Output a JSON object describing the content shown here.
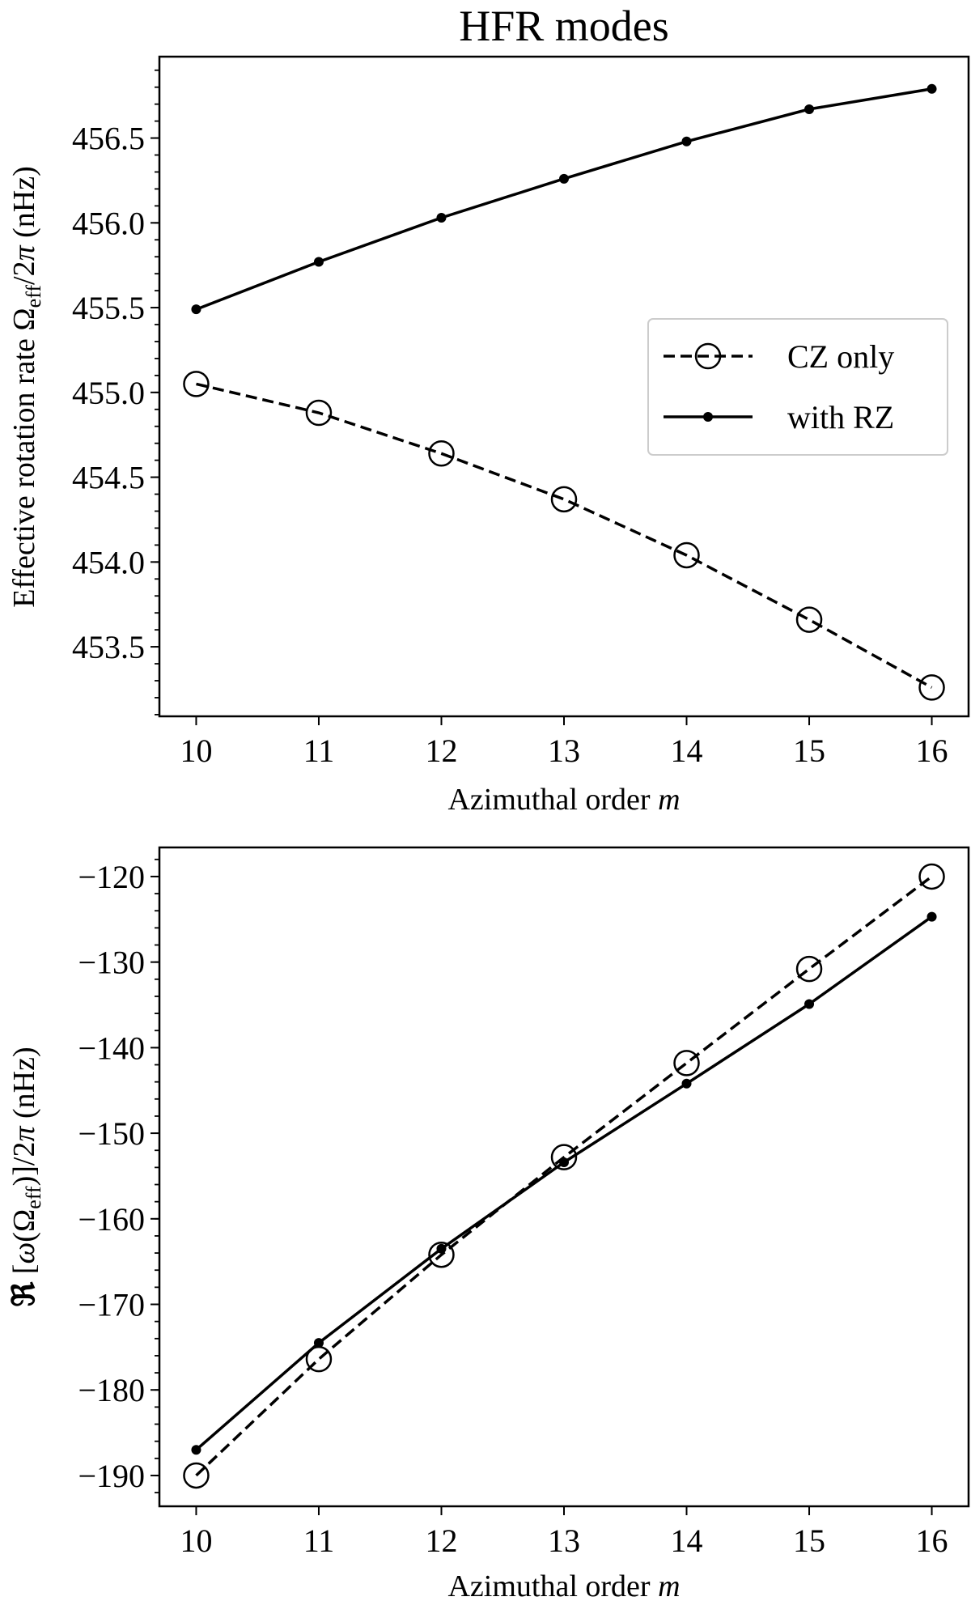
{
  "title": "HFR modes",
  "legend": {
    "placement": "center-right (top panel)",
    "entries": [
      {
        "label": "CZ only",
        "style": "dashed",
        "marker": "open-circle"
      },
      {
        "label": "with RZ",
        "style": "solid",
        "marker": "filled-dot"
      }
    ]
  },
  "chart_data": [
    {
      "type": "line",
      "title": "HFR modes",
      "xlabel": "Azimuthal order m",
      "ylabel": "Effective rotation rate Ω_eff/2π (nHz)",
      "xlim": [
        9.7,
        16.3
      ],
      "ylim": [
        453.09,
        456.98
      ],
      "x_ticks": [
        "10",
        "11",
        "12",
        "13",
        "14",
        "15",
        "16"
      ],
      "y_ticks": [
        "453.5",
        "454.0",
        "454.5",
        "455.0",
        "455.5",
        "456.0",
        "456.5"
      ],
      "y_minor_step": 0.1,
      "grid": false,
      "x": [
        10,
        11,
        12,
        13,
        14,
        15,
        16
      ],
      "series": [
        {
          "name": "CZ only",
          "values": [
            455.05,
            454.88,
            454.64,
            454.37,
            454.04,
            453.66,
            453.26
          ]
        },
        {
          "name": "with RZ",
          "values": [
            455.49,
            455.77,
            456.03,
            456.26,
            456.48,
            456.67,
            456.79
          ]
        }
      ]
    },
    {
      "type": "line",
      "xlabel": "Azimuthal order m",
      "ylabel": "ℜ[ω(Ω_eff)]/2π (nHz)",
      "xlim": [
        9.7,
        16.3
      ],
      "ylim": [
        -193.6,
        -116.6
      ],
      "x_ticks": [
        "10",
        "11",
        "12",
        "13",
        "14",
        "15",
        "16"
      ],
      "y_ticks": [
        "−190",
        "−180",
        "−170",
        "−160",
        "−150",
        "−140",
        "−130",
        "−120"
      ],
      "y_minor_step": 2,
      "grid": false,
      "x": [
        10,
        11,
        12,
        13,
        14,
        15,
        16
      ],
      "series": [
        {
          "name": "CZ only",
          "values": [
            -190.0,
            -176.4,
            -164.2,
            -152.8,
            -141.8,
            -130.8,
            -120.0
          ]
        },
        {
          "name": "with RZ",
          "values": [
            -187.0,
            -174.5,
            -163.5,
            -153.4,
            -144.2,
            -134.9,
            -124.7
          ]
        }
      ]
    }
  ]
}
